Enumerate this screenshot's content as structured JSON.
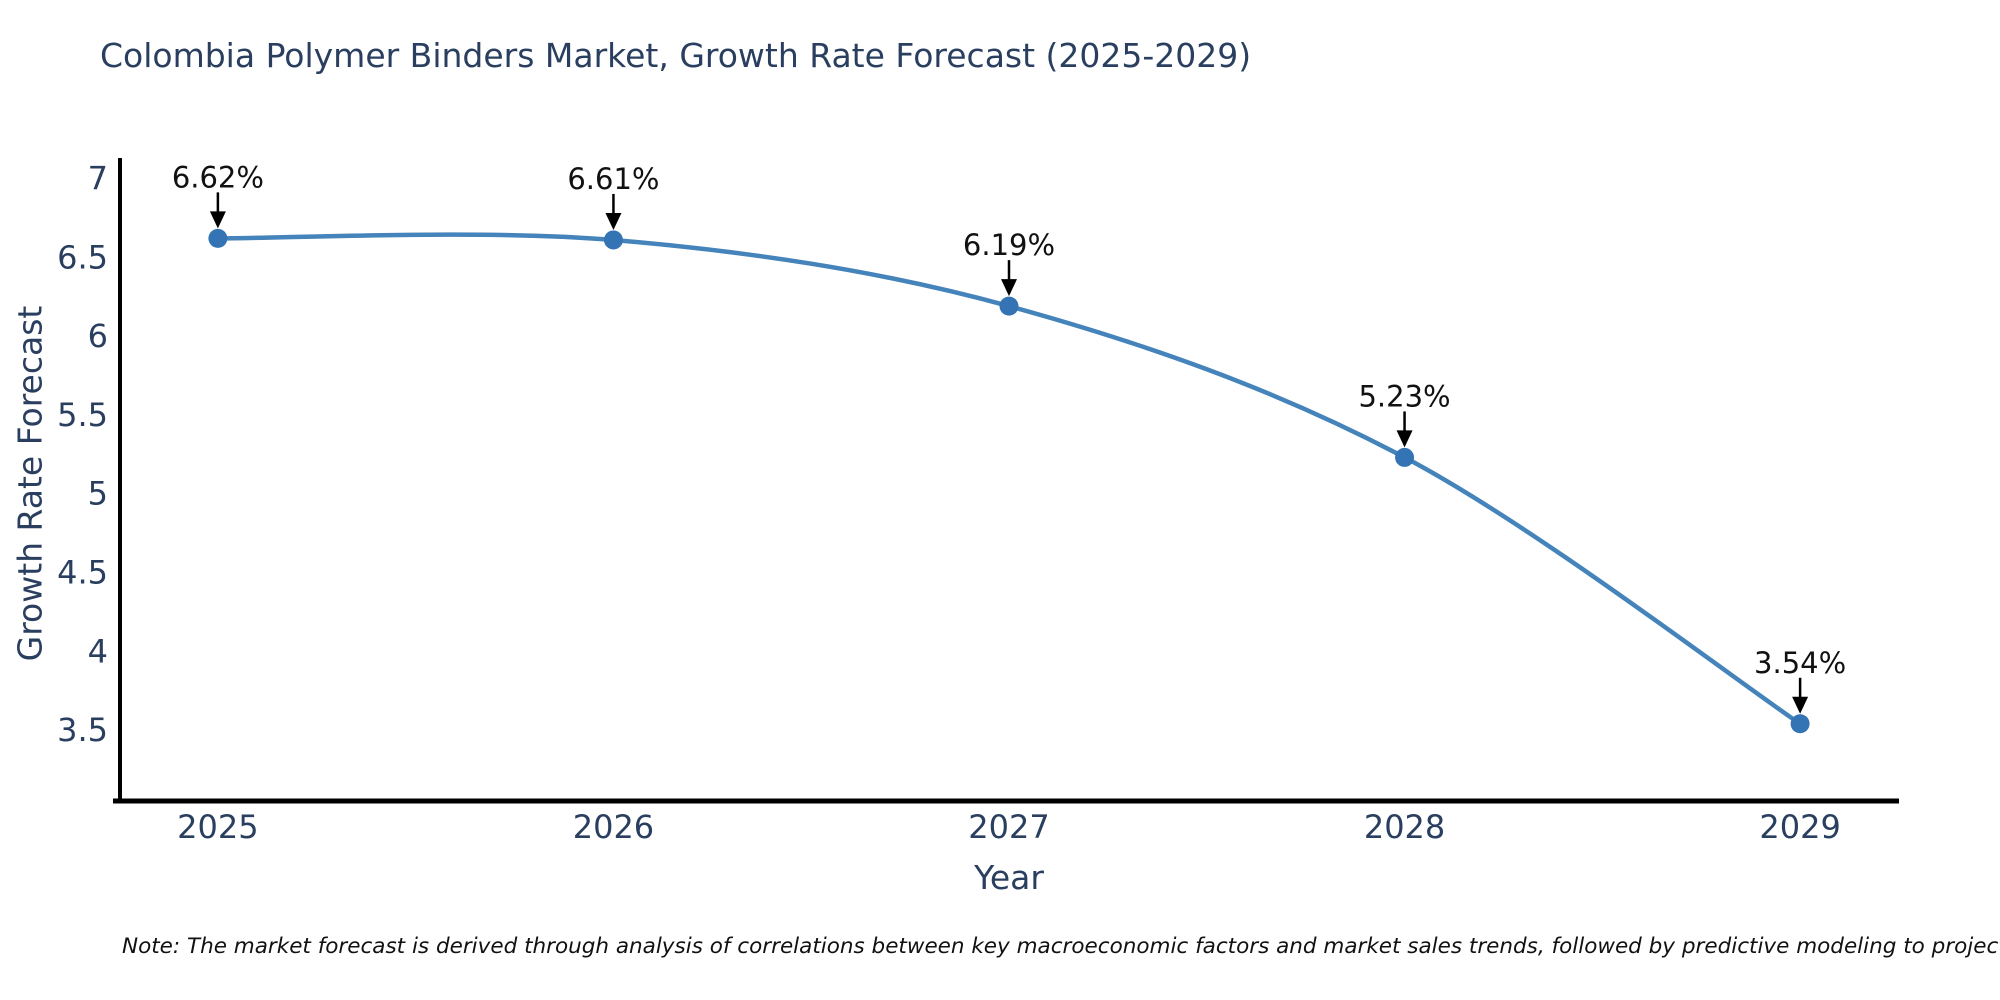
{
  "chart": {
    "title": "Colombia Polymer Binders Market, Growth Rate Forecast (2025-2029)",
    "xlabel": "Year",
    "ylabel": "Growth Rate Forecast",
    "note": "Note: The market forecast is derived through analysis of correlations between key macroeconomic factors and market sales trends, followed by predictive modeling to project future sales"
  },
  "chart_data": {
    "type": "line",
    "line_shape": "spline",
    "title": "Colombia Polymer Binders Market, Growth Rate Forecast (2025-2029)",
    "xlabel": "Year",
    "ylabel": "Growth Rate Forecast",
    "x": [
      2025,
      2026,
      2027,
      2028,
      2029
    ],
    "series": [
      {
        "name": "Growth Rate Forecast",
        "values": [
          6.62,
          6.61,
          6.19,
          5.23,
          3.54
        ]
      }
    ],
    "point_labels": [
      "6.62%",
      "6.61%",
      "6.19%",
      "5.23%",
      "3.54%"
    ],
    "xticks": [
      "2025",
      "2026",
      "2027",
      "2028",
      "2029"
    ],
    "yticks": [
      3.5,
      4,
      4.5,
      5,
      5.5,
      6,
      6.5,
      7
    ],
    "xlim": [
      2024.75,
      2029.25
    ],
    "ylim": [
      3.05,
      7.13
    ],
    "grid": false,
    "legend": false,
    "annotation_arrows": true,
    "colors": {
      "line": "#4583bb",
      "marker": "#3474b4",
      "axis_line": "#000000",
      "tick_label": "#2a3f5f",
      "title_text": "#2a3f5f",
      "annotation_text": "#111111",
      "arrow": "#000000"
    }
  }
}
